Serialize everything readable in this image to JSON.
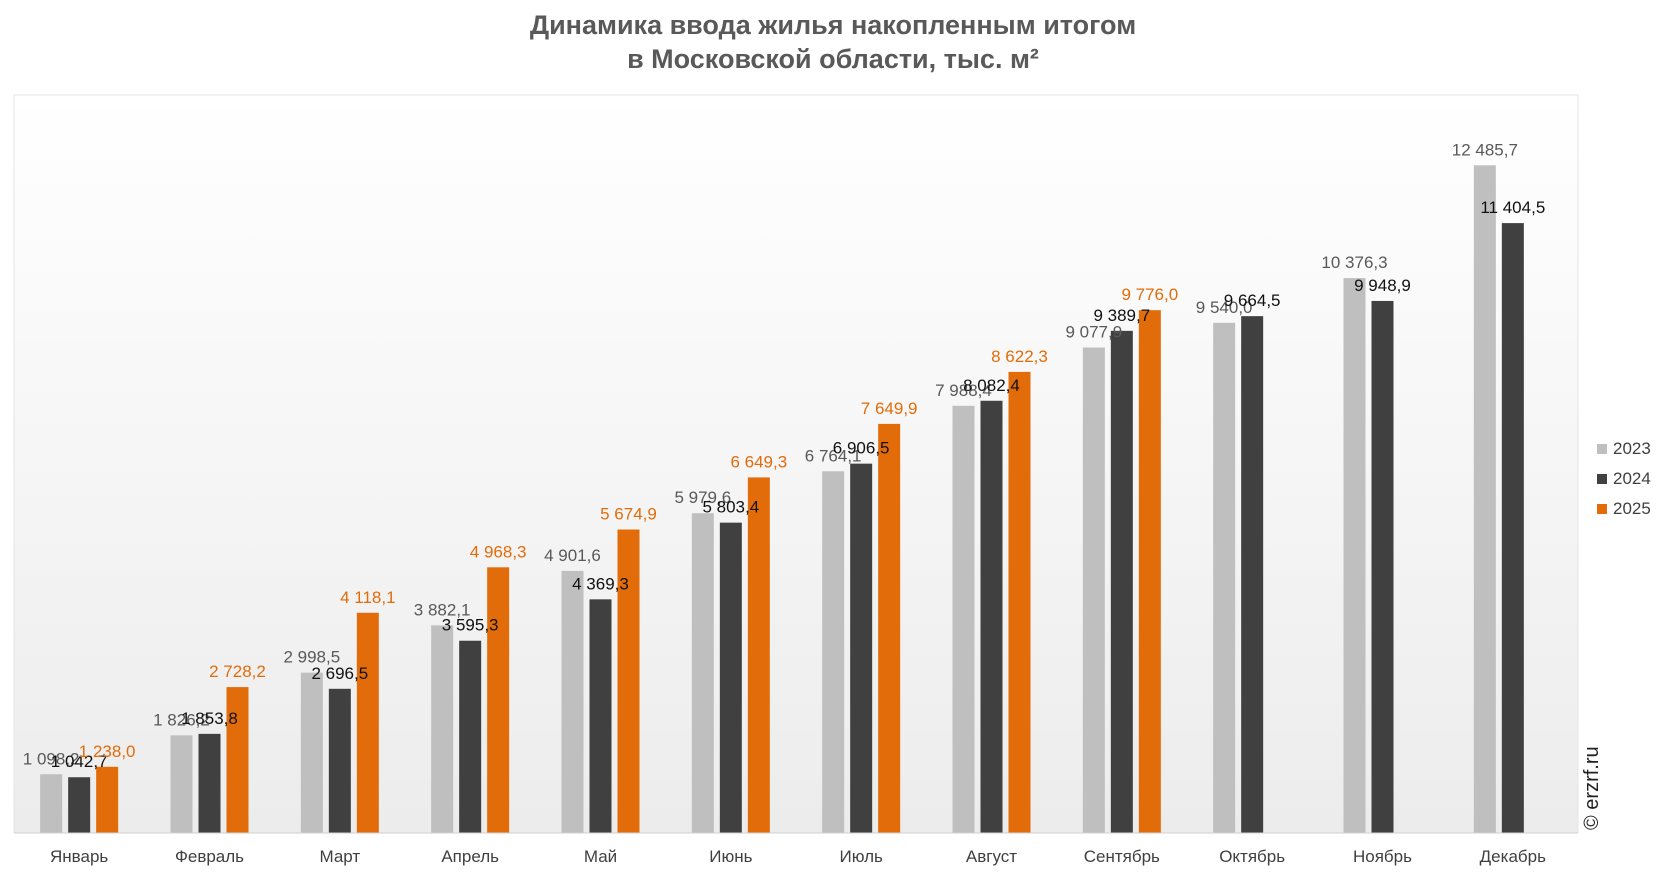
{
  "chart_data": {
    "type": "bar",
    "title": "Динамика ввода жилья накопленным итогом",
    "subtitle": "в Московской области, тыс. м²",
    "categories": [
      "Январь",
      "Февраль",
      "Март",
      "Апрель",
      "Май",
      "Июнь",
      "Июль",
      "Август",
      "Сентябрь",
      "Октябрь",
      "Ноябрь",
      "Декабрь"
    ],
    "series": [
      {
        "name": "2023",
        "color": "#bfbfbf",
        "label_color": "#595959",
        "values": [
          1098.2,
          1826.2,
          2998.5,
          3882.1,
          4901.6,
          5979.6,
          6764.1,
          7988.4,
          9077.9,
          9540.0,
          10376.3,
          12485.7
        ],
        "labels": [
          "1 098,2",
          "1 826,2",
          "2 998,5",
          "3 882,1",
          "4 901,6",
          "5 979,6",
          "6 764,1",
          "7 988,4",
          "9 077,9",
          "9 540,0",
          "10 376,3",
          "12 485,7"
        ]
      },
      {
        "name": "2024",
        "color": "#404040",
        "label_color": "#111111",
        "values": [
          1042.7,
          1853.8,
          2696.5,
          3595.3,
          4369.3,
          5803.4,
          6906.5,
          8082.4,
          9389.7,
          9664.5,
          9948.9,
          11404.5
        ],
        "labels": [
          "1 042,7",
          "1 853,8",
          "2 696,5",
          "3 595,3",
          "4 369,3",
          "5 803,4",
          "6 906,5",
          "8 082,4",
          "9 389,7",
          "9 664,5",
          "9 948,9",
          "11 404,5"
        ]
      },
      {
        "name": "2025",
        "color": "#e36c0a",
        "label_color": "#e36c0a",
        "values": [
          1238.0,
          2728.2,
          4118.1,
          4968.3,
          5674.9,
          6649.3,
          7649.9,
          8622.3,
          9776.0,
          null,
          null,
          null
        ],
        "labels": [
          "1 238,0",
          "2 728,2",
          "4 118,1",
          "4 968,3",
          "5 674,9",
          "6 649,3",
          "7 649,9",
          "8 622,3",
          "9 776,0",
          null,
          null,
          null
        ]
      }
    ],
    "ylim": [
      0,
      13800
    ],
    "xlabel": "",
    "ylabel": "",
    "grid": false,
    "legend_position": "right"
  },
  "watermark": "© erzrf.ru"
}
